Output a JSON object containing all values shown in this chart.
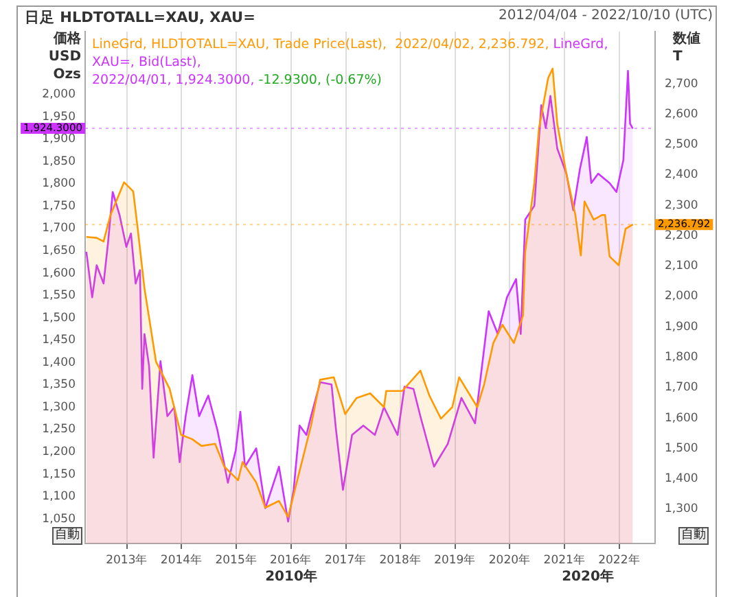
{
  "chart_data": {
    "type": "area",
    "title": "日足 HLDTOTALL=XAU, XAU=",
    "subtitle": "2012/04/04 - 2022/10/10 (UTC)",
    "ylabel": "価格\nUSD\nOzs",
    "y2label": "数値\nT",
    "annotations": [
      "LineGrd, HLDTOTALL=XAU, Trade Price(Last),  2022/04/02, 2,236.792, ",
      "LineGrd, XAU=, Bid(Last),\n2022/04/01, 1,924.3000, ",
      "-12.9300, (-0.67%)",
      "2010年",
      "2020年",
      "自動",
      "自動"
    ],
    "xlim": [
      "2012-03-28",
      "2022-08-28"
    ],
    "xticks": [
      {
        "value": "2013-01-01",
        "label": "2013年"
      },
      {
        "value": "2014-01-01",
        "label": "2014年"
      },
      {
        "value": "2015-01-01",
        "label": "2015年"
      },
      {
        "value": "2016-01-01",
        "label": "2016年"
      },
      {
        "value": "2017-01-01",
        "label": "2017年"
      },
      {
        "value": "2018-01-01",
        "label": "2018年"
      },
      {
        "value": "2019-01-01",
        "label": "2019年"
      },
      {
        "value": "2020-01-01",
        "label": "2020年"
      },
      {
        "value": "2021-01-01",
        "label": "2021年"
      },
      {
        "value": "2022-01-01",
        "label": "2022年"
      }
    ],
    "ylim": [
      995,
      2141
    ],
    "yticks": [
      {
        "value": 1050,
        "label": "1,050"
      },
      {
        "value": 1100,
        "label": "1,100"
      },
      {
        "value": 1150,
        "label": "1,150"
      },
      {
        "value": 1200,
        "label": "1,200"
      },
      {
        "value": 1250,
        "label": "1,250"
      },
      {
        "value": 1300,
        "label": "1,300"
      },
      {
        "value": 1350,
        "label": "1,350"
      },
      {
        "value": 1400,
        "label": "1,400"
      },
      {
        "value": 1450,
        "label": "1,450"
      },
      {
        "value": 1500,
        "label": "1,500"
      },
      {
        "value": 1550,
        "label": "1,550"
      },
      {
        "value": 1600,
        "label": "1,600"
      },
      {
        "value": 1650,
        "label": "1,650"
      },
      {
        "value": 1700,
        "label": "1,700"
      },
      {
        "value": 1750,
        "label": "1,750"
      },
      {
        "value": 1800,
        "label": "1,800"
      },
      {
        "value": 1850,
        "label": "1,850"
      },
      {
        "value": 1900,
        "label": "1,900"
      },
      {
        "value": 1950,
        "label": "1,950"
      },
      {
        "value": 2000,
        "label": "2,000"
      }
    ],
    "y2lim": [
      1187,
      2872
    ],
    "y2ticks": [
      {
        "value": 1300,
        "label": "1,300"
      },
      {
        "value": 1400,
        "label": "1,400"
      },
      {
        "value": 1500,
        "label": "1,500"
      },
      {
        "value": 1600,
        "label": "1,600"
      },
      {
        "value": 1700,
        "label": "1,700"
      },
      {
        "value": 1800,
        "label": "1,800"
      },
      {
        "value": 1900,
        "label": "1,900"
      },
      {
        "value": 2000,
        "label": "2,000"
      },
      {
        "value": 2100,
        "label": "2,100"
      },
      {
        "value": 2200,
        "label": "2,200"
      },
      {
        "value": 2300,
        "label": "2,300"
      },
      {
        "value": 2400,
        "label": "2,400"
      },
      {
        "value": 2500,
        "label": "2,500"
      },
      {
        "value": 2600,
        "label": "2,600"
      },
      {
        "value": 2700,
        "label": "2,700"
      }
    ],
    "ref_lines": [
      {
        "axis": "y",
        "value": 1924.3,
        "label": "1,924.3000",
        "color": "#cc33ff"
      },
      {
        "axis": "y2",
        "value": 2236.792,
        "label": "2,236.792",
        "color": "#ff9900"
      }
    ],
    "grid": "x",
    "legend": false,
    "series": [
      {
        "color": "#ff9900",
        "axis": "y2",
        "x": [
          "2012-04-05",
          "2012-06-13",
          "2012-07-29",
          "2012-09-13",
          "2012-12-13",
          "2013-02-12",
          "2013-03-14",
          "2013-04-28",
          "2013-07-14",
          "2013-10-13",
          "2013-12-28",
          "2014-03-14",
          "2014-05-14",
          "2014-08-13",
          "2014-10-13",
          "2015-01-13",
          "2015-02-12",
          "2015-05-14",
          "2015-07-14",
          "2015-10-13",
          "2015-12-13",
          "2016-02-12",
          "2016-05-14",
          "2016-07-14",
          "2016-10-13",
          "2016-12-28",
          "2017-03-14",
          "2017-06-13",
          "2017-09-13",
          "2017-09-28",
          "2018-01-13",
          "2018-05-14",
          "2018-07-14",
          "2018-09-28",
          "2018-12-13",
          "2019-01-28",
          "2019-05-29",
          "2019-07-14",
          "2019-09-13",
          "2019-11-13",
          "2020-01-28",
          "2020-03-29",
          "2020-04-13",
          "2020-06-13",
          "2020-07-14",
          "2020-09-13",
          "2020-10-13",
          "2020-11-13",
          "2021-01-13",
          "2021-03-14",
          "2021-04-19",
          "2021-05-14",
          "2021-07-14",
          "2021-09-07",
          "2021-09-28",
          "2021-10-28",
          "2021-12-28",
          "2022-02-12",
          "2022-04-02"
        ],
        "values": [
          2196,
          2193,
          2181,
          2268,
          2376,
          2346,
          2223,
          2027,
          1786,
          1696,
          1545,
          1530,
          1508,
          1515,
          1440,
          1395,
          1455,
          1388,
          1305,
          1327,
          1274,
          1395,
          1575,
          1726,
          1734,
          1613,
          1666,
          1681,
          1636,
          1689,
          1689,
          1756,
          1673,
          1598,
          1636,
          1734,
          1636,
          1711,
          1847,
          1907,
          1847,
          1937,
          2148,
          2374,
          2554,
          2719,
          2750,
          2569,
          2403,
          2268,
          2135,
          2313,
          2253,
          2268,
          2268,
          2132,
          2103,
          2223,
          2237
        ]
      },
      {
        "color": "#cc33ff",
        "axis": "y",
        "x": [
          "2012-04-05",
          "2012-05-14",
          "2012-06-13",
          "2012-07-29",
          "2012-08-28",
          "2012-09-28",
          "2012-11-13",
          "2012-12-28",
          "2013-01-28",
          "2013-02-28",
          "2013-03-29",
          "2013-04-13",
          "2013-04-28",
          "2013-05-29",
          "2013-06-28",
          "2013-08-13",
          "2013-09-28",
          "2013-11-13",
          "2013-12-19",
          "2014-01-28",
          "2014-03-14",
          "2014-04-28",
          "2014-06-28",
          "2014-08-28",
          "2014-11-06",
          "2014-12-28",
          "2015-01-28",
          "2015-02-28",
          "2015-05-14",
          "2015-07-14",
          "2015-10-13",
          "2015-12-13",
          "2016-01-19",
          "2016-02-28",
          "2016-04-13",
          "2016-05-14",
          "2016-07-14",
          "2016-09-28",
          "2016-10-28",
          "2016-12-13",
          "2017-02-12",
          "2017-04-28",
          "2017-07-14",
          "2017-09-13",
          "2017-12-13",
          "2018-01-28",
          "2018-03-29",
          "2018-05-14",
          "2018-08-13",
          "2018-11-13",
          "2019-02-12",
          "2019-05-14",
          "2019-08-13",
          "2019-10-13",
          "2019-12-13",
          "2020-02-12",
          "2020-03-14",
          "2020-04-13",
          "2020-06-13",
          "2020-07-29",
          "2020-08-28",
          "2020-09-28",
          "2020-11-13",
          "2021-01-13",
          "2021-02-28",
          "2021-04-13",
          "2021-05-29",
          "2021-06-28",
          "2021-08-13",
          "2021-10-28",
          "2021-12-13",
          "2022-01-28",
          "2022-02-28",
          "2022-03-14",
          "2022-04-01"
        ],
        "values": [
          1648,
          1546,
          1618,
          1577,
          1669,
          1782,
          1730,
          1659,
          1689,
          1577,
          1607,
          1341,
          1464,
          1392,
          1187,
          1403,
          1280,
          1300,
          1177,
          1280,
          1372,
          1280,
          1326,
          1249,
          1131,
          1203,
          1290,
          1167,
          1208,
          1074,
          1167,
          1044,
          1115,
          1259,
          1238,
          1280,
          1356,
          1351,
          1249,
          1115,
          1238,
          1259,
          1238,
          1300,
          1238,
          1346,
          1341,
          1280,
          1167,
          1218,
          1321,
          1264,
          1515,
          1464,
          1546,
          1587,
          1464,
          1720,
          1751,
          1976,
          1925,
          1997,
          1879,
          1823,
          1741,
          1833,
          1905,
          1802,
          1823,
          1802,
          1782,
          1853,
          2053,
          1935,
          1924
        ]
      }
    ]
  }
}
